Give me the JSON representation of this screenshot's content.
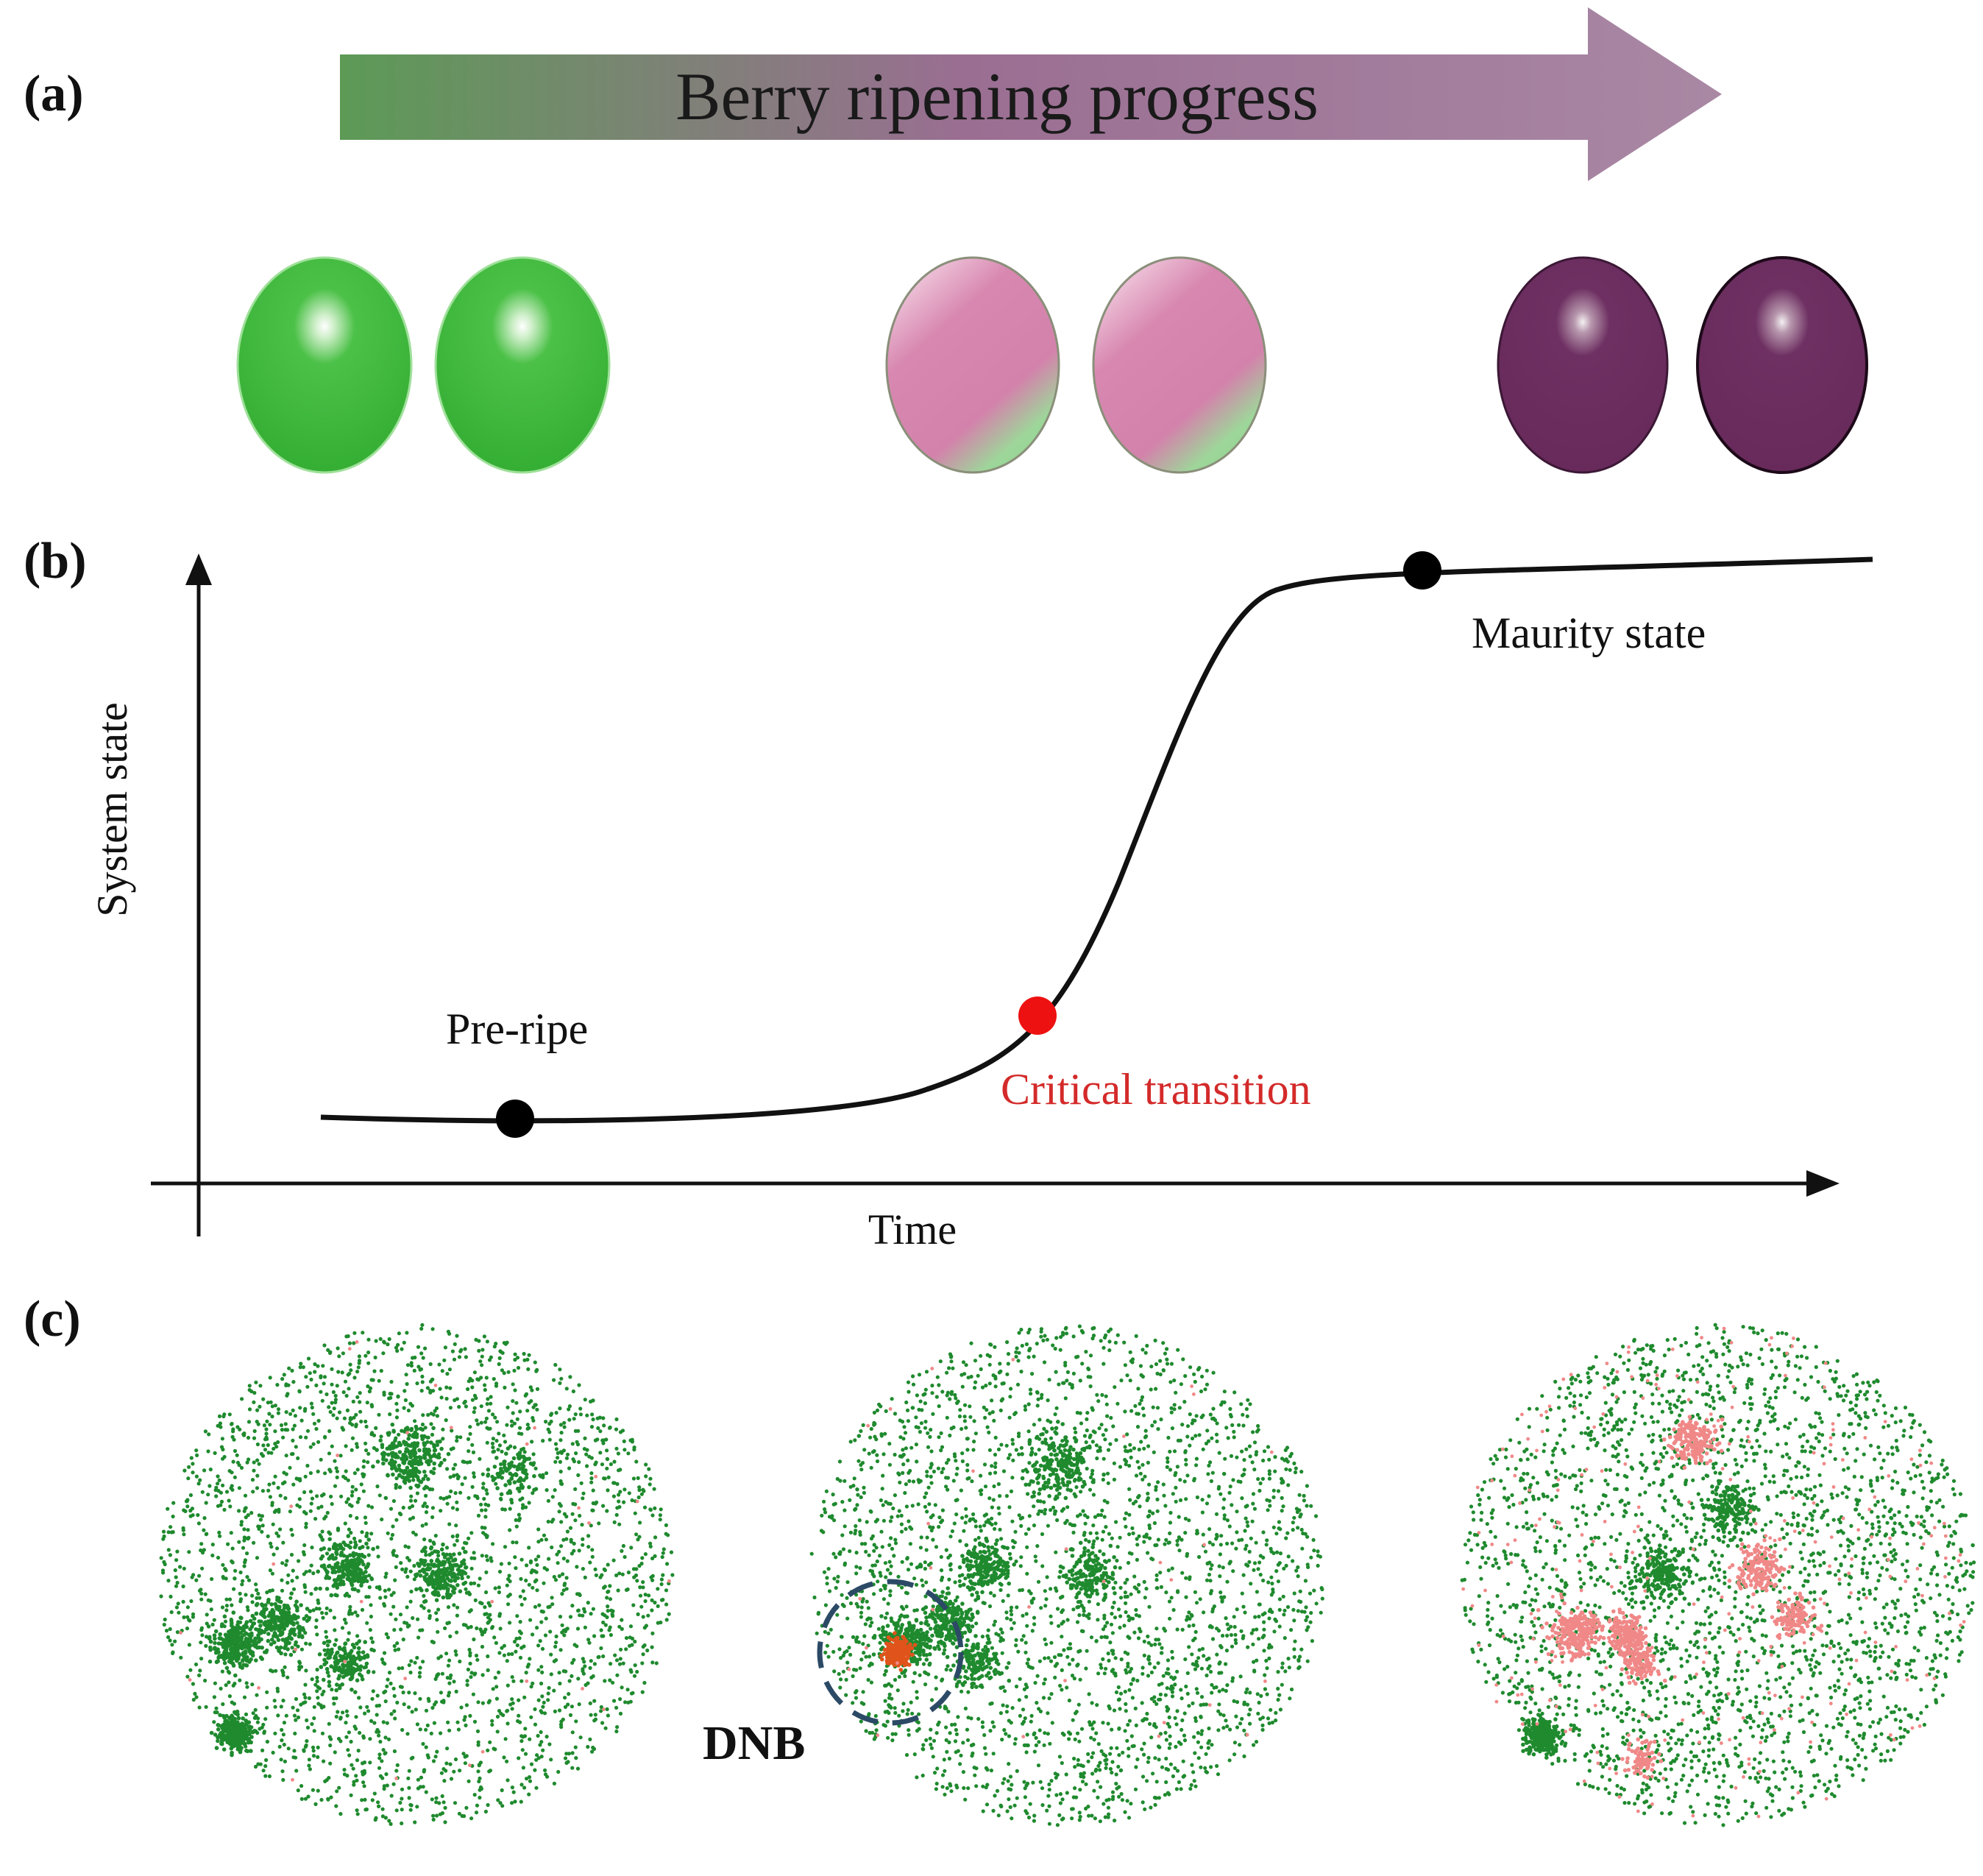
{
  "panels": {
    "a": {
      "label": "(a)",
      "arrow_text": "Berry ripening progress",
      "arrow_colors": {
        "start": "#5c9a56",
        "mid": "#9a6e92",
        "end": "#a57ea0"
      },
      "berry_groups": [
        {
          "stage": "unripe",
          "fill": "#3cb63a",
          "light": "#7fdc79",
          "stroke": "#8fd88a"
        },
        {
          "stage": "veraison",
          "fill": "#d585ad",
          "light": "#f0c6db",
          "accent": "#8fd490",
          "stroke": "#8a8f7a"
        },
        {
          "stage": "ripe",
          "fill": "#6b2d5e",
          "light": "#dcd3d8",
          "stroke": "#2a0f25"
        }
      ]
    },
    "b": {
      "label": "(b)",
      "y_axis_label": "System state",
      "x_axis_label": "Time",
      "points": [
        {
          "label": "Pre-ripe",
          "color": "#000000",
          "label_color": "#111111"
        },
        {
          "label": "Critical transition",
          "color": "#ee1111",
          "label_color": "#d42a2a"
        },
        {
          "label": "Maurity state",
          "color": "#000000",
          "label_color": "#111111"
        }
      ]
    },
    "c": {
      "label": "(c)",
      "dnb_label": "DNB",
      "colors": {
        "normal": "#1f8a2e",
        "dnb": "#e0541c",
        "pink": "#f08888",
        "circle": "#2c4a66"
      }
    }
  }
}
